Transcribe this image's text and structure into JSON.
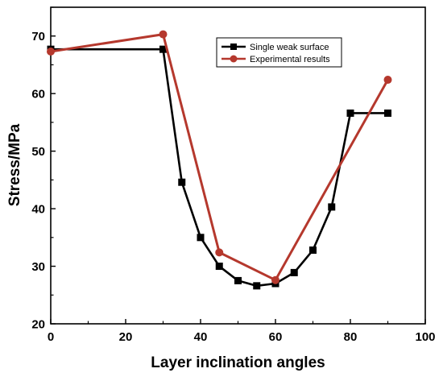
{
  "chart_data": {
    "type": "line",
    "title": "",
    "xlabel": "Layer inclination angles",
    "ylabel": "Stress/MPa",
    "xlim": [
      0,
      100
    ],
    "ylim": [
      20,
      75
    ],
    "x_ticks": [
      0,
      20,
      40,
      60,
      80,
      100
    ],
    "y_ticks": [
      20,
      30,
      40,
      50,
      60,
      70
    ],
    "grid": false,
    "legend_position": "top-right",
    "series": [
      {
        "name": "Single weak surface",
        "color": "#000000",
        "marker": "square",
        "x": [
          0,
          30,
          35,
          40,
          45,
          50,
          55,
          60,
          65,
          70,
          75,
          80,
          90
        ],
        "y": [
          67.7,
          67.7,
          44.6,
          35.0,
          30.0,
          27.5,
          26.6,
          27.0,
          28.9,
          32.8,
          40.3,
          56.6,
          56.6
        ]
      },
      {
        "name": "Experimental results",
        "color": "#b5382d",
        "marker": "circle",
        "x": [
          0,
          30,
          45,
          60,
          90
        ],
        "y": [
          67.3,
          70.3,
          32.4,
          27.6,
          62.4
        ]
      }
    ]
  }
}
